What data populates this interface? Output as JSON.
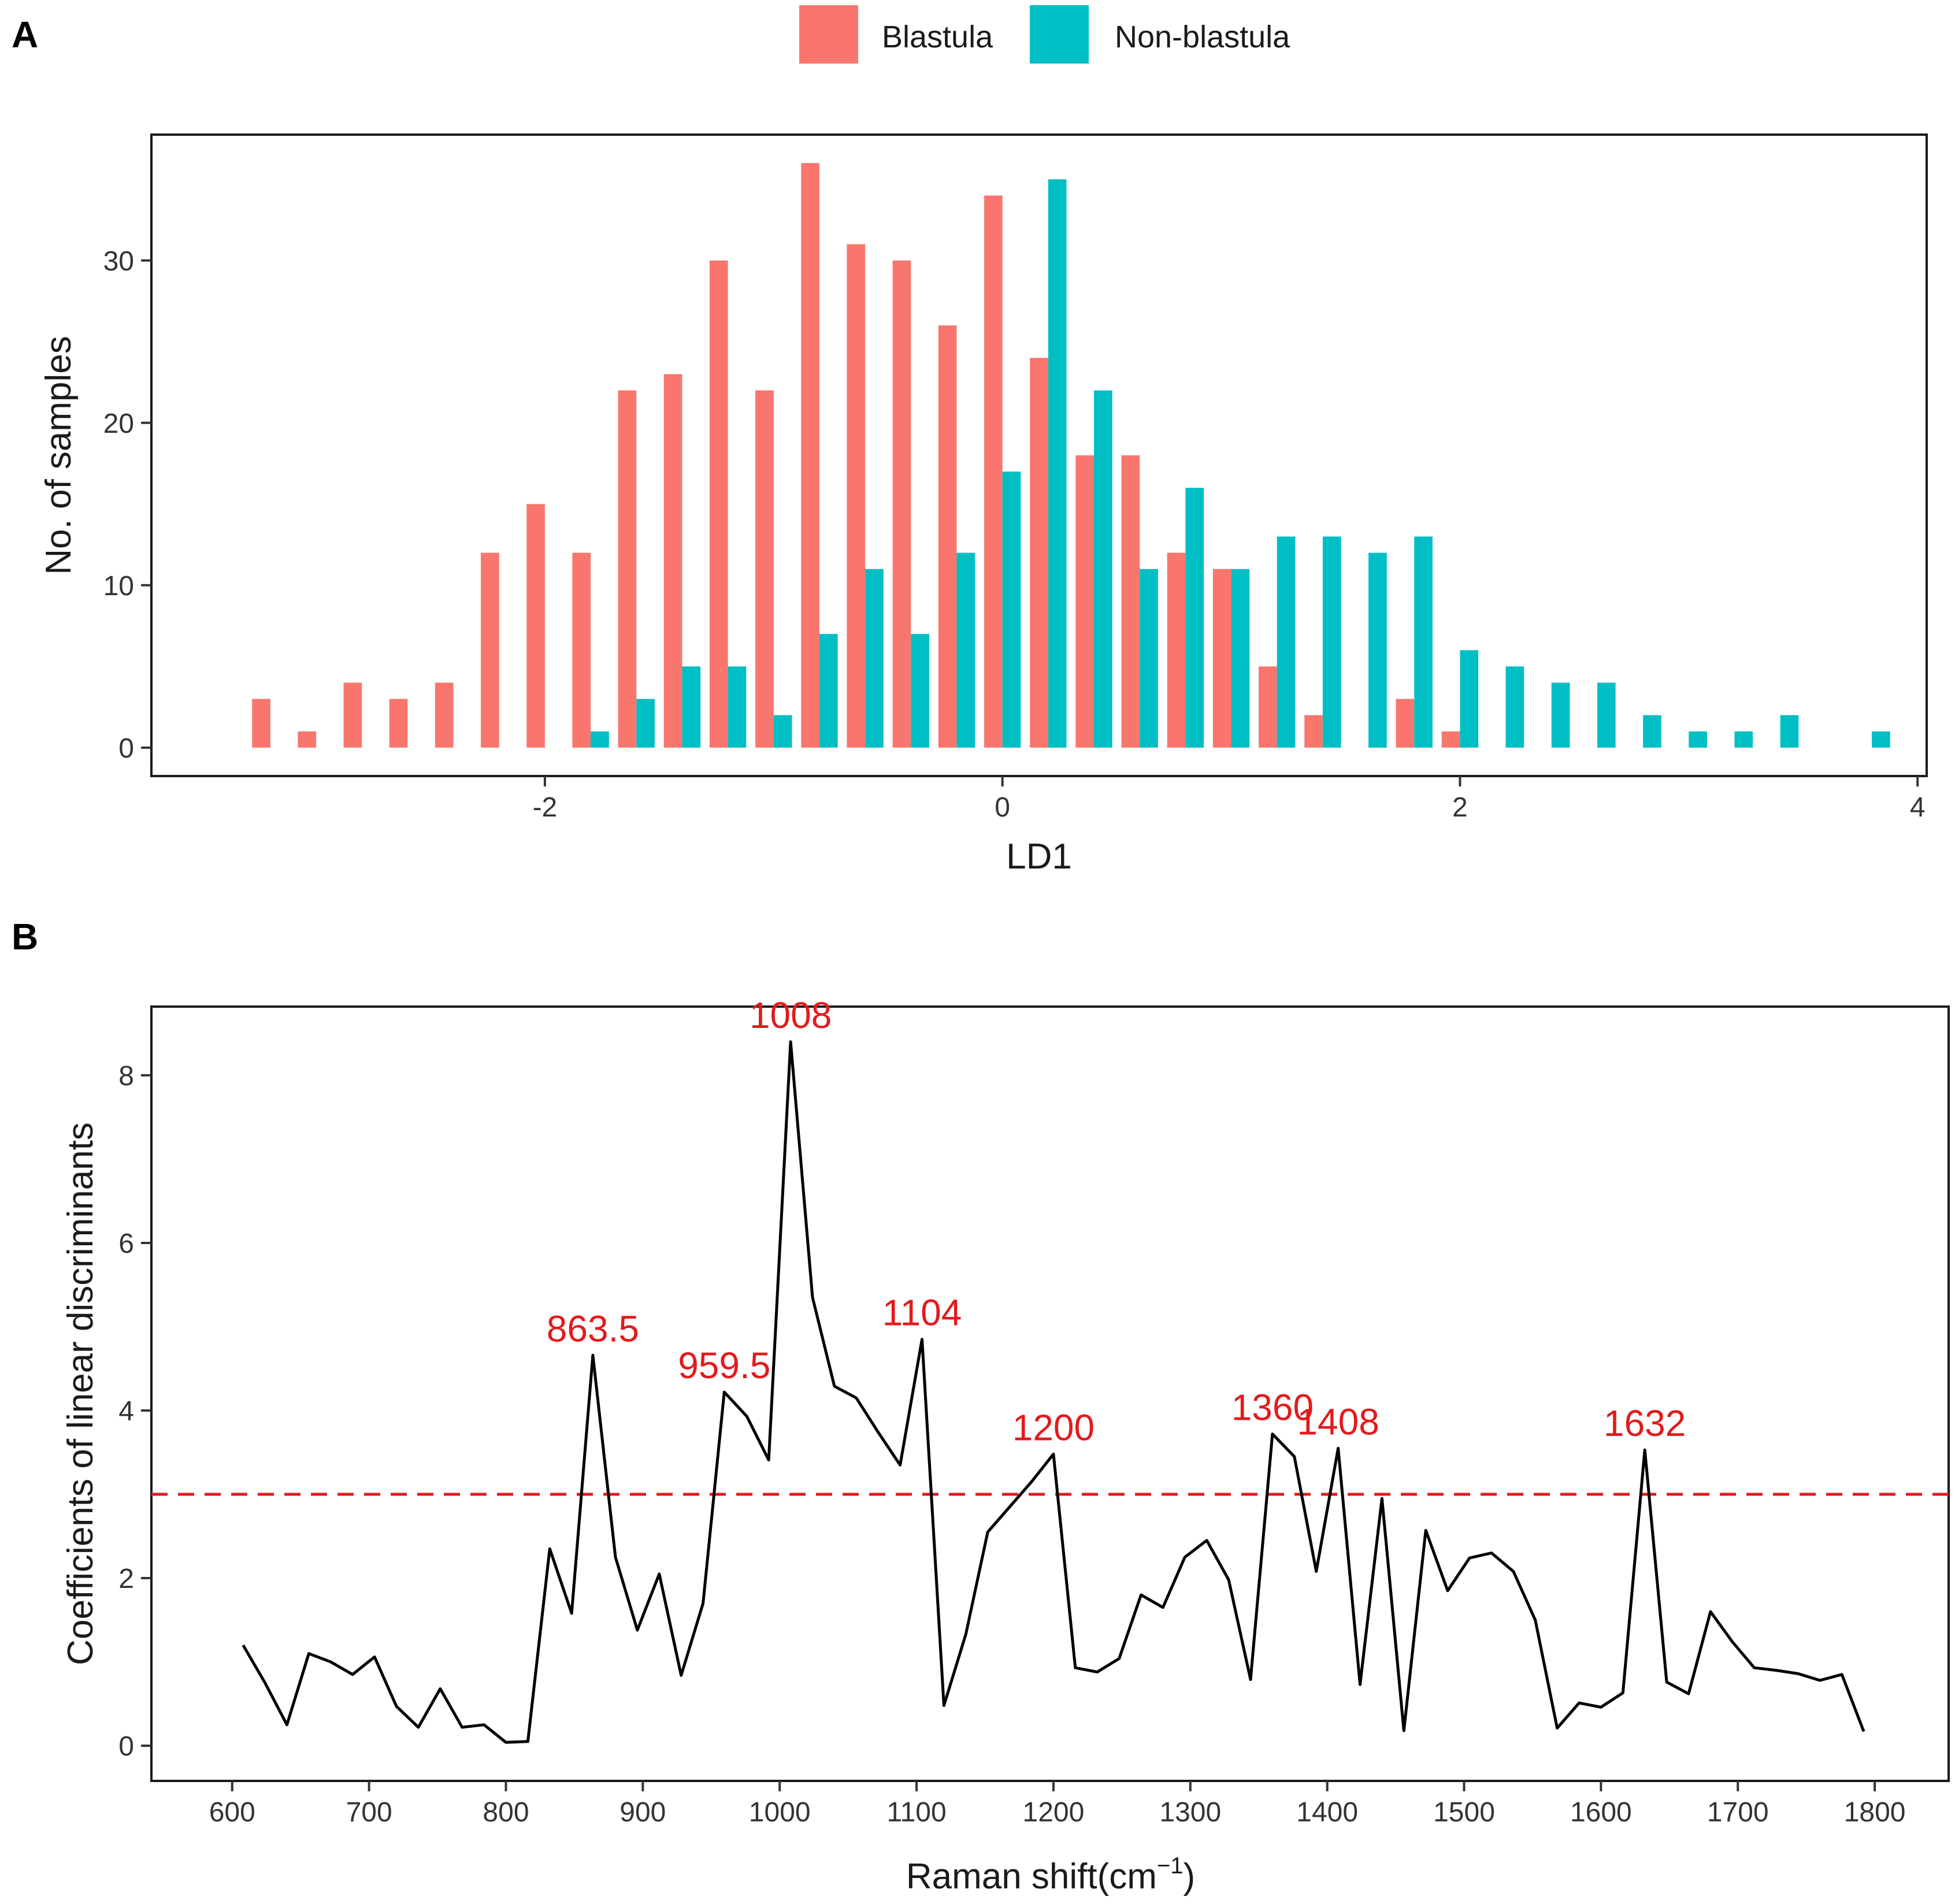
{
  "panel_labels": {
    "a": "A",
    "b": "B"
  },
  "legend": [
    {
      "label": "Blastula",
      "color": "#F8766D"
    },
    {
      "label": "Non-blastula",
      "color": "#00BFC4"
    }
  ],
  "chart_data": [
    {
      "id": "A",
      "type": "bar",
      "xlabel": "LD1",
      "ylabel": "No. of samples",
      "xlim": [
        -3.72,
        4.04
      ],
      "ylim": [
        -1.75,
        37.75
      ],
      "xticks": [
        -2,
        0,
        2,
        4
      ],
      "xtick_labels": [
        "-2",
        "0",
        "2",
        "4"
      ],
      "yticks": [
        0,
        10,
        20,
        30
      ],
      "ytick_labels": [
        "0",
        "10",
        "20",
        "30"
      ],
      "bar_width": 0.08,
      "series": [
        {
          "name": "Blastula",
          "color": "#F8766D",
          "points": [
            {
              "x": -3.24,
              "y": 3
            },
            {
              "x": -3.04,
              "y": 1
            },
            {
              "x": -2.84,
              "y": 4
            },
            {
              "x": -2.64,
              "y": 3
            },
            {
              "x": -2.44,
              "y": 4
            },
            {
              "x": -2.24,
              "y": 12
            },
            {
              "x": -2.04,
              "y": 15
            },
            {
              "x": -1.84,
              "y": 12
            },
            {
              "x": -1.64,
              "y": 22
            },
            {
              "x": -1.44,
              "y": 23
            },
            {
              "x": -1.24,
              "y": 30
            },
            {
              "x": -1.04,
              "y": 22
            },
            {
              "x": -0.84,
              "y": 36
            },
            {
              "x": -0.64,
              "y": 31
            },
            {
              "x": -0.44,
              "y": 30
            },
            {
              "x": -0.24,
              "y": 26
            },
            {
              "x": -0.04,
              "y": 34
            },
            {
              "x": 0.16,
              "y": 24
            },
            {
              "x": 0.36,
              "y": 18
            },
            {
              "x": 0.56,
              "y": 18
            },
            {
              "x": 0.76,
              "y": 12
            },
            {
              "x": 0.96,
              "y": 11
            },
            {
              "x": 1.16,
              "y": 5
            },
            {
              "x": 1.36,
              "y": 2
            },
            {
              "x": 1.76,
              "y": 3
            },
            {
              "x": 1.96,
              "y": 1
            }
          ]
        },
        {
          "name": "Non-blastula",
          "color": "#00BFC4",
          "points": [
            {
              "x": -1.76,
              "y": 1
            },
            {
              "x": -1.56,
              "y": 3
            },
            {
              "x": -1.36,
              "y": 5
            },
            {
              "x": -1.16,
              "y": 5
            },
            {
              "x": -0.96,
              "y": 2
            },
            {
              "x": -0.76,
              "y": 7
            },
            {
              "x": -0.56,
              "y": 11
            },
            {
              "x": -0.36,
              "y": 7
            },
            {
              "x": -0.16,
              "y": 12
            },
            {
              "x": 0.04,
              "y": 17
            },
            {
              "x": 0.24,
              "y": 35
            },
            {
              "x": 0.44,
              "y": 22
            },
            {
              "x": 0.64,
              "y": 11
            },
            {
              "x": 0.84,
              "y": 16
            },
            {
              "x": 1.04,
              "y": 11
            },
            {
              "x": 1.24,
              "y": 13
            },
            {
              "x": 1.44,
              "y": 13
            },
            {
              "x": 1.64,
              "y": 12
            },
            {
              "x": 1.84,
              "y": 13
            },
            {
              "x": 2.04,
              "y": 6
            },
            {
              "x": 2.24,
              "y": 5
            },
            {
              "x": 2.44,
              "y": 4
            },
            {
              "x": 2.64,
              "y": 4
            },
            {
              "x": 2.84,
              "y": 2
            },
            {
              "x": 3.04,
              "y": 1
            },
            {
              "x": 3.24,
              "y": 1
            },
            {
              "x": 3.44,
              "y": 2
            },
            {
              "x": 3.84,
              "y": 1
            }
          ]
        }
      ]
    },
    {
      "id": "B",
      "type": "line",
      "xlabel_main": "Raman shift(cm",
      "xlabel_sup": "−1",
      "xlabel_tail": ")",
      "ylabel": "Coefficients of linear discriminants",
      "xlim": [
        541,
        1854
      ],
      "ylim": [
        -0.42,
        8.82
      ],
      "xticks": [
        600,
        700,
        800,
        900,
        1000,
        1100,
        1200,
        1300,
        1400,
        1500,
        1600,
        1700,
        1800
      ],
      "xtick_labels": [
        "600",
        "700",
        "800",
        "900",
        "1000",
        "1100",
        "1200",
        "1300",
        "1400",
        "1500",
        "1600",
        "1700",
        "1800"
      ],
      "yticks": [
        0,
        2,
        4,
        6,
        8
      ],
      "ytick_labels": [
        "0",
        "2",
        "4",
        "6",
        "8"
      ],
      "threshold": 3,
      "threshold_color": "#E31A1C",
      "line_color": "#000000",
      "annotation_color": "#E31A1C",
      "x": [
        608,
        624,
        640,
        656,
        672,
        688,
        704,
        720,
        736,
        752,
        768,
        784,
        800,
        816,
        832,
        848,
        863.5,
        880,
        896,
        912,
        928,
        944,
        959.5,
        976,
        992,
        1008,
        1024,
        1040,
        1056,
        1072,
        1088,
        1104,
        1120,
        1136,
        1152,
        1168,
        1184,
        1200,
        1216,
        1232,
        1248,
        1264,
        1280,
        1296,
        1312,
        1328,
        1344,
        1360,
        1376,
        1392,
        1408,
        1424,
        1440,
        1456,
        1472,
        1488,
        1504,
        1520,
        1536,
        1552,
        1568,
        1584,
        1600,
        1616,
        1632,
        1648,
        1664,
        1680,
        1696,
        1712,
        1728,
        1744,
        1760,
        1776,
        1792
      ],
      "y": [
        1.2,
        0.75,
        0.25,
        1.1,
        1.0,
        0.85,
        1.06,
        0.47,
        0.22,
        0.68,
        0.22,
        0.25,
        0.04,
        0.05,
        2.35,
        1.58,
        4.66,
        2.25,
        1.38,
        2.05,
        0.84,
        1.7,
        4.22,
        3.93,
        3.41,
        8.4,
        5.35,
        4.29,
        4.15,
        3.74,
        3.35,
        4.85,
        0.48,
        1.33,
        2.55,
        2.85,
        3.15,
        3.48,
        0.93,
        0.88,
        1.04,
        1.8,
        1.65,
        2.25,
        2.45,
        1.98,
        0.79,
        3.72,
        3.45,
        2.08,
        3.55,
        0.73,
        2.95,
        0.18,
        2.57,
        1.85,
        2.24,
        2.3,
        2.08,
        1.5,
        0.21,
        0.51,
        0.46,
        0.63,
        3.53,
        0.76,
        0.62,
        1.6,
        1.24,
        0.93,
        0.9,
        0.86,
        0.78,
        0.85,
        0.17
      ],
      "annotations": [
        {
          "label": "863.5",
          "x": 863.5,
          "y": 4.66
        },
        {
          "label": "959.5",
          "x": 959.5,
          "y": 4.22
        },
        {
          "label": "1008",
          "x": 1008,
          "y": 8.4
        },
        {
          "label": "1104",
          "x": 1104,
          "y": 4.85
        },
        {
          "label": "1200",
          "x": 1200,
          "y": 3.48
        },
        {
          "label": "1360",
          "x": 1360,
          "y": 3.72
        },
        {
          "label": "1408",
          "x": 1408,
          "y": 3.55
        },
        {
          "label": "1632",
          "x": 1632,
          "y": 3.53
        }
      ]
    }
  ]
}
